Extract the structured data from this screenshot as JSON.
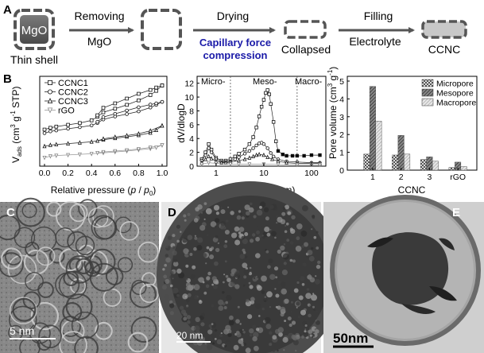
{
  "panel_labels": {
    "a": "A",
    "b": "B",
    "c": "C",
    "d": "D",
    "e": "E"
  },
  "schematic": {
    "core_label": "MgO",
    "thin_shell_label": "Thin shell",
    "step1_top": "Removing",
    "step1_bottom": "MgO",
    "step2_top": "Drying",
    "step2_blue_line1": "Capillary force",
    "step2_blue_line2": "compression",
    "collapsed_label": "Collapsed",
    "step3_top": "Filling",
    "step3_bottom": "Electrolyte",
    "final_label": "CCNC",
    "blue_color": "#1a1aa8",
    "shell_color": "#555555"
  },
  "chart_data": [
    {
      "type": "line",
      "ylabel_parts": [
        "V",
        "ads",
        " (cm",
        "3",
        " g",
        "-1",
        " STP)"
      ],
      "xlabel_parts": [
        "Relative pressure (",
        "p",
        " / ",
        "p",
        "0",
        ")"
      ],
      "xlim": [
        0,
        1
      ],
      "xticks": [
        "0.0",
        "0.2",
        "0.4",
        "0.6",
        "0.8",
        "1.0"
      ],
      "legend_position": "top-left",
      "series": [
        {
          "name": "CCNC1",
          "marker": "square",
          "adsorption": [
            [
              0.0,
              1120
            ],
            [
              0.05,
              1180
            ],
            [
              0.1,
              1220
            ],
            [
              0.2,
              1280
            ],
            [
              0.3,
              1340
            ],
            [
              0.4,
              1430
            ],
            [
              0.45,
              1550
            ],
            [
              0.5,
              1700
            ],
            [
              0.6,
              1820
            ],
            [
              0.7,
              1950
            ],
            [
              0.8,
              2100
            ],
            [
              0.9,
              2280
            ],
            [
              0.95,
              2420
            ],
            [
              1.0,
              2600
            ]
          ],
          "desorption": [
            [
              1.0,
              2600
            ],
            [
              0.95,
              2530
            ],
            [
              0.9,
              2450
            ],
            [
              0.8,
              2320
            ],
            [
              0.7,
              2160
            ],
            [
              0.6,
              2000
            ],
            [
              0.5,
              1850
            ],
            [
              0.45,
              1600
            ]
          ]
        },
        {
          "name": "CCNC2",
          "marker": "circle",
          "adsorption": [
            [
              0.0,
              1000
            ],
            [
              0.05,
              1060
            ],
            [
              0.1,
              1090
            ],
            [
              0.2,
              1150
            ],
            [
              0.3,
              1200
            ],
            [
              0.4,
              1260
            ],
            [
              0.45,
              1340
            ],
            [
              0.5,
              1460
            ],
            [
              0.6,
              1560
            ],
            [
              0.7,
              1640
            ],
            [
              0.8,
              1730
            ],
            [
              0.9,
              1860
            ],
            [
              0.95,
              1950
            ],
            [
              1.0,
              2050
            ]
          ],
          "desorption": [
            [
              1.0,
              2050
            ],
            [
              0.95,
              2000
            ],
            [
              0.9,
              1960
            ],
            [
              0.8,
              1870
            ],
            [
              0.7,
              1760
            ],
            [
              0.6,
              1650
            ],
            [
              0.5,
              1540
            ],
            [
              0.45,
              1380
            ]
          ]
        },
        {
          "name": "CCNC3",
          "marker": "triangle",
          "adsorption": [
            [
              0.0,
              560
            ],
            [
              0.05,
              600
            ],
            [
              0.1,
              620
            ],
            [
              0.2,
              650
            ],
            [
              0.3,
              680
            ],
            [
              0.4,
              710
            ],
            [
              0.5,
              780
            ],
            [
              0.6,
              830
            ],
            [
              0.7,
              880
            ],
            [
              0.8,
              930
            ],
            [
              0.9,
              1010
            ],
            [
              0.95,
              1100
            ],
            [
              1.0,
              1250
            ]
          ],
          "desorption": [
            [
              1.0,
              1250
            ],
            [
              0.9,
              1080
            ],
            [
              0.8,
              980
            ],
            [
              0.7,
              920
            ],
            [
              0.6,
              870
            ],
            [
              0.5,
              810
            ],
            [
              0.45,
              740
            ]
          ]
        },
        {
          "name": "rGO",
          "marker": "triangle-down",
          "adsorption": [
            [
              0.0,
              180
            ],
            [
              0.05,
              230
            ],
            [
              0.1,
              250
            ],
            [
              0.2,
              270
            ],
            [
              0.3,
              290
            ],
            [
              0.4,
              310
            ],
            [
              0.5,
              340
            ],
            [
              0.6,
              370
            ],
            [
              0.7,
              400
            ],
            [
              0.8,
              440
            ],
            [
              0.9,
              480
            ],
            [
              0.95,
              520
            ],
            [
              1.0,
              600
            ]
          ],
          "desorption": [
            [
              1.0,
              600
            ],
            [
              0.9,
              520
            ],
            [
              0.8,
              470
            ],
            [
              0.7,
              430
            ],
            [
              0.6,
              400
            ],
            [
              0.5,
              370
            ],
            [
              0.45,
              340
            ]
          ]
        }
      ]
    },
    {
      "type": "line",
      "ylabel": "dV/dlogD",
      "xlabel": "Pore width (nm)",
      "xscale": "log",
      "xlim": [
        0.4,
        200
      ],
      "ylim": [
        0,
        13
      ],
      "yticks": [
        0,
        2,
        4,
        6,
        8,
        10,
        12
      ],
      "xticks": [
        1,
        10,
        100
      ],
      "region_labels": [
        "Micro-",
        "Meso-",
        "Macro-"
      ],
      "region_boundaries": [
        2,
        50
      ],
      "series": [
        {
          "name": "CCNC1",
          "marker": "square",
          "points": [
            [
              0.5,
              1.0
            ],
            [
              0.6,
              2.0
            ],
            [
              0.7,
              3.2
            ],
            [
              0.8,
              2.4
            ],
            [
              1.0,
              1.2
            ],
            [
              1.3,
              0.8
            ],
            [
              1.6,
              0.8
            ],
            [
              2.0,
              1.0
            ],
            [
              2.5,
              1.4
            ],
            [
              3.0,
              1.8
            ],
            [
              4.0,
              2.4
            ],
            [
              5.0,
              3.2
            ],
            [
              6.0,
              4.2
            ],
            [
              7.0,
              5.6
            ],
            [
              8.0,
              7.2
            ],
            [
              9.0,
              8.6
            ],
            [
              10.0,
              9.6
            ],
            [
              11.0,
              10.6
            ],
            [
              12.0,
              11.0
            ],
            [
              13.0,
              10.4
            ],
            [
              14.0,
              9.0
            ],
            [
              16.0,
              6.4
            ],
            [
              18.0,
              3.6
            ],
            [
              20.0,
              2.2
            ],
            [
              25.0,
              1.7
            ],
            [
              30.0,
              1.5
            ],
            [
              40.0,
              1.5
            ],
            [
              50.0,
              1.5
            ],
            [
              70.0,
              1.5
            ],
            [
              100.0,
              1.6
            ],
            [
              150.0,
              1.6
            ]
          ]
        },
        {
          "name": "CCNC2",
          "marker": "circle",
          "points": [
            [
              0.5,
              0.8
            ],
            [
              0.6,
              1.6
            ],
            [
              0.7,
              2.6
            ],
            [
              0.8,
              2.0
            ],
            [
              1.0,
              1.0
            ],
            [
              1.3,
              0.6
            ],
            [
              1.6,
              0.6
            ],
            [
              2.0,
              0.7
            ],
            [
              2.5,
              1.0
            ],
            [
              3.0,
              1.3
            ],
            [
              4.0,
              1.8
            ],
            [
              5.0,
              2.2
            ],
            [
              6.0,
              2.6
            ],
            [
              7.0,
              3.0
            ],
            [
              8.0,
              3.3
            ],
            [
              9.0,
              3.4
            ],
            [
              10.0,
              3.2
            ],
            [
              12.0,
              2.6
            ],
            [
              14.0,
              1.9
            ],
            [
              16.0,
              1.4
            ],
            [
              20.0,
              1.0
            ],
            [
              30.0,
              0.7
            ],
            [
              50.0,
              0.6
            ],
            [
              100.0,
              0.5
            ],
            [
              150.0,
              0.5
            ]
          ]
        },
        {
          "name": "CCNC3",
          "marker": "triangle",
          "points": [
            [
              0.5,
              0.5
            ],
            [
              0.6,
              1.0
            ],
            [
              0.7,
              1.4
            ],
            [
              0.8,
              1.1
            ],
            [
              1.0,
              0.7
            ],
            [
              1.3,
              0.5
            ],
            [
              1.6,
              0.5
            ],
            [
              2.0,
              0.6
            ],
            [
              3.0,
              0.8
            ],
            [
              4.0,
              1.0
            ],
            [
              5.0,
              1.2
            ],
            [
              6.0,
              1.4
            ],
            [
              7.0,
              1.6
            ],
            [
              8.0,
              1.7
            ],
            [
              10.0,
              1.6
            ],
            [
              12.0,
              1.3
            ],
            [
              15.0,
              1.0
            ],
            [
              20.0,
              0.7
            ],
            [
              30.0,
              0.5
            ],
            [
              50.0,
              0.4
            ],
            [
              100.0,
              0.4
            ],
            [
              150.0,
              0.4
            ]
          ]
        },
        {
          "name": "rGO",
          "marker": "triangle-down",
          "points": [
            [
              0.5,
              0.3
            ],
            [
              0.7,
              0.5
            ],
            [
              1.0,
              0.4
            ],
            [
              2.0,
              0.3
            ],
            [
              3.0,
              0.3
            ],
            [
              5.0,
              0.3
            ],
            [
              10.0,
              0.3
            ],
            [
              20.0,
              0.25
            ],
            [
              50.0,
              0.2
            ],
            [
              100.0,
              0.2
            ],
            [
              150.0,
              0.2
            ]
          ]
        }
      ]
    },
    {
      "type": "bar",
      "ylabel_parts": [
        "Pore volume (cm",
        "3",
        " g",
        "-1",
        ")"
      ],
      "xlabel": "CCNC",
      "categories": [
        "1",
        "2",
        "3",
        "rGO"
      ],
      "ylim": [
        0,
        5
      ],
      "yticks": [
        0,
        1,
        2,
        3,
        4,
        5
      ],
      "legend_position": "top-right",
      "series": [
        {
          "name": "Micropore",
          "pattern": "crosshatch",
          "values": [
            0.9,
            0.85,
            0.6,
            0.15
          ]
        },
        {
          "name": "Mesopore",
          "pattern": "dark-diagonal",
          "values": [
            4.7,
            1.95,
            0.75,
            0.45
          ]
        },
        {
          "name": "Macropore",
          "pattern": "light-diagonal",
          "values": [
            2.75,
            0.9,
            0.5,
            0.2
          ]
        }
      ]
    }
  ],
  "tem": {
    "c_scale": "5 nm",
    "d_scale": "20 nm",
    "e_scale": "50nm"
  }
}
